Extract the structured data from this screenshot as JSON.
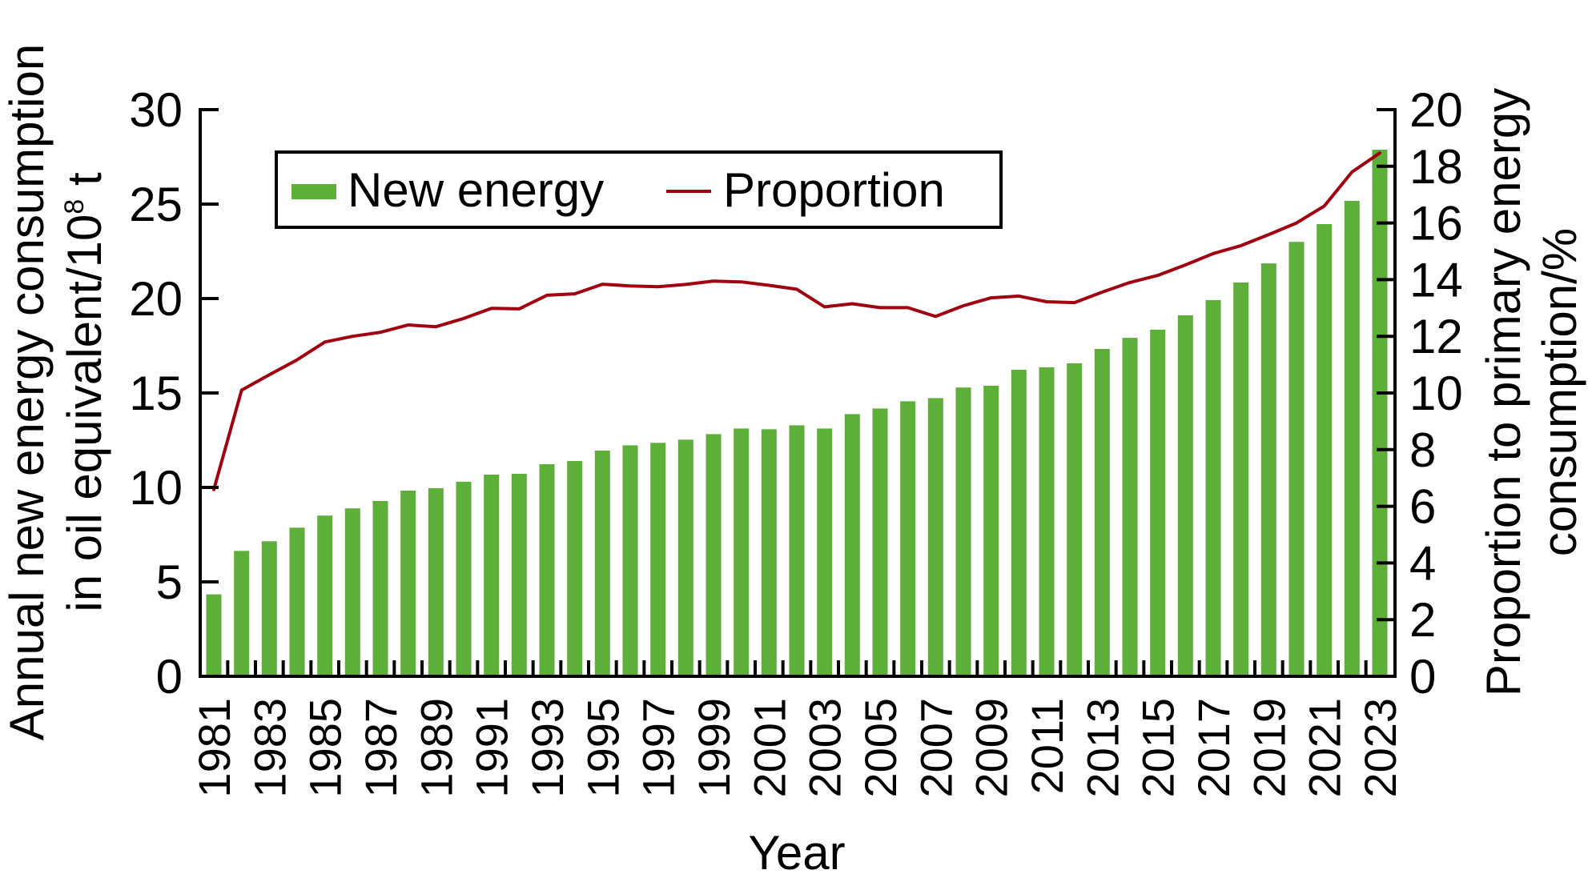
{
  "chart_data": {
    "type": "bar+line",
    "title": "",
    "xlabel": "Year",
    "ylabel_left_lines": [
      "Annual new energy consumption",
      "in oil equivalent/10",
      "8",
      " t"
    ],
    "ylabel_right_lines": [
      "Proportion to primary energy",
      "consumption/%"
    ],
    "ylim_left": [
      0,
      30
    ],
    "ylim_right": [
      0,
      20
    ],
    "yticks_left": [
      "0",
      "5",
      "10",
      "15",
      "20",
      "25",
      "30"
    ],
    "yticks_right": [
      "0",
      "2",
      "4",
      "6",
      "8",
      "10",
      "12",
      "14",
      "16",
      "18",
      "20"
    ],
    "categories": [
      "1981",
      "1982",
      "1983",
      "1984",
      "1985",
      "1986",
      "1987",
      "1988",
      "1989",
      "1990",
      "1991",
      "1992",
      "1993",
      "1994",
      "1995",
      "1996",
      "1997",
      "1998",
      "1999",
      "2000",
      "2001",
      "2002",
      "2003",
      "2004",
      "2005",
      "2006",
      "2007",
      "2008",
      "2009",
      "2010",
      "2011",
      "2012",
      "2013",
      "2014",
      "2015",
      "2016",
      "2017",
      "2018",
      "2019",
      "2020",
      "2021",
      "2022",
      "2023"
    ],
    "xtick_labels": [
      "1981",
      "1983",
      "1985",
      "1987",
      "1989",
      "1991",
      "1993",
      "1995",
      "1997",
      "1999",
      "2001",
      "2003",
      "2005",
      "2007",
      "2009",
      "2011",
      "2013",
      "2015",
      "2017",
      "2019",
      "2021",
      "2023"
    ],
    "grid": false,
    "legend_placement": "top-left",
    "series": [
      {
        "name": "New energy",
        "type": "bar",
        "axis": "left",
        "color": "#5daf3a",
        "values": [
          4.34,
          6.64,
          7.15,
          7.87,
          8.51,
          8.89,
          9.28,
          9.83,
          9.96,
          10.3,
          10.68,
          10.72,
          11.23,
          11.4,
          11.95,
          12.23,
          12.36,
          12.53,
          12.82,
          13.12,
          13.08,
          13.29,
          13.12,
          13.88,
          14.18,
          14.56,
          14.73,
          15.29,
          15.38,
          16.23,
          16.36,
          16.57,
          17.33,
          17.92,
          18.35,
          19.11,
          19.92,
          20.85,
          21.86,
          23.0,
          23.94,
          25.17,
          27.88
        ]
      },
      {
        "name": "Proportion",
        "type": "line",
        "axis": "right",
        "color": "#a0000f",
        "values": [
          6.59,
          10.1,
          10.64,
          11.17,
          11.8,
          12.0,
          12.14,
          12.4,
          12.34,
          12.63,
          12.99,
          12.97,
          13.45,
          13.5,
          13.84,
          13.78,
          13.75,
          13.83,
          13.95,
          13.92,
          13.8,
          13.66,
          13.04,
          13.15,
          13.01,
          13.01,
          12.7,
          13.08,
          13.36,
          13.42,
          13.22,
          13.19,
          13.56,
          13.9,
          14.15,
          14.52,
          14.92,
          15.2,
          15.59,
          16.0,
          16.6,
          17.8,
          18.47
        ]
      }
    ]
  }
}
